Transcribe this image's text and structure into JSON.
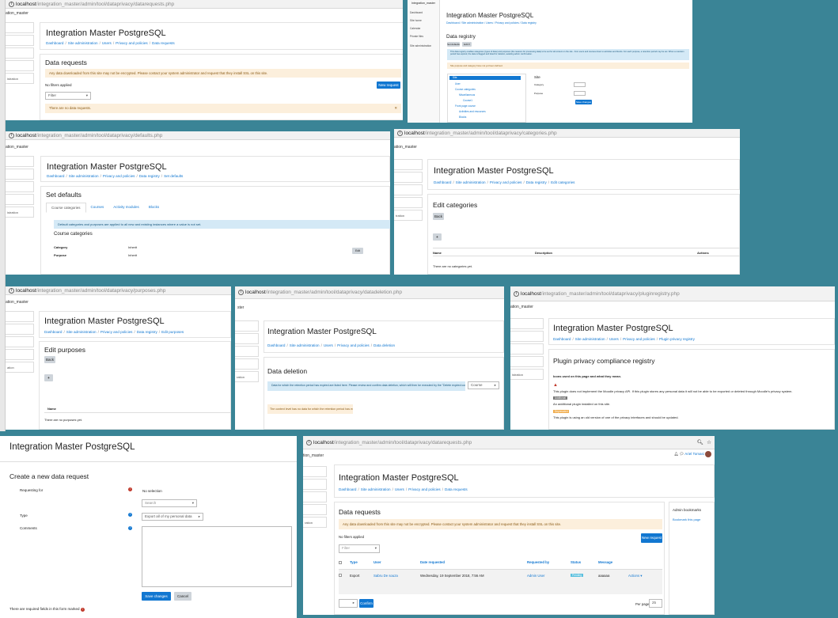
{
  "site_title": "Integration Master PostgreSQL",
  "site_short": "ation_master",
  "p1": {
    "host": "localhost",
    "path": "/integration_master/admin/tool/dataprivacy/datarequests.php",
    "breadcrumbs": [
      "Dashboard",
      "Site administration",
      "Users",
      "Privacy and policies",
      "Data requests"
    ],
    "heading": "Data requests",
    "alert": "Any data downloaded from this site may not be encrypted. Please contact your system administrator and request that they install SSL on this site.",
    "no_filters": "No filters applied",
    "filter_placeholder": "Filter",
    "new_request": "New request",
    "no_requests": "There are no data requests.",
    "nav_tail": "istration"
  },
  "p2": {
    "site": "Integration_master",
    "nav": [
      "Dashboard",
      "Site home",
      "Calendar",
      "Private files",
      "Site administration"
    ],
    "heading": "Data registry",
    "actions": [
      "Set defaults",
      "Edit"
    ],
    "info": "This data registry enables categories (types of data) and purposes (the reasons for processing data) to be set for all content on the site - from users and courses down to activities and blocks. For each purpose, a retention period may be set. When a retention period has expired, the data is flagged and listed for deletion, awaiting admin confirmation.",
    "warn": "Site purpose and category have not yet been defined.",
    "tree": [
      "Site",
      "User",
      "Course categories",
      "Miscellaneous",
      "Course1",
      "Front page course",
      "Activities and resources",
      "Blocks"
    ],
    "right_title": "Site",
    "fields": [
      "Category",
      "Purpose"
    ],
    "save": "Save changes"
  },
  "p3": {
    "host": "localhost",
    "path": "/integration_master/admin/tool/dataprivacy/defaults.php",
    "breadcrumbs": [
      "Dashboard",
      "Site administration",
      "Privacy and policies",
      "Data registry",
      "Set defaults"
    ],
    "heading": "Set defaults",
    "tabs": [
      "Course categories",
      "Courses",
      "Activity modules",
      "Blocks"
    ],
    "info": "Default categories and purposes are applied to all new and existing instances where a value is not set.",
    "section": "Course categories",
    "rows": [
      {
        "label": "Category",
        "value": "Inherit"
      },
      {
        "label": "Purpose",
        "value": "Inherit"
      }
    ],
    "edit": "Edit",
    "nav_tail": "istration"
  },
  "p4": {
    "host": "localhost",
    "path": "/integration_master/admin/tool/dataprivacy/categories.php",
    "breadcrumbs": [
      "Dashboard",
      "Site administration",
      "Privacy and policies",
      "Data registry",
      "Edit categories"
    ],
    "heading": "Edit categories",
    "back": "Back",
    "add": "+",
    "cols": [
      "Name",
      "Description",
      "Actions"
    ],
    "empty": "There are no categories yet.",
    "nav_tail": "tration"
  },
  "p5": {
    "host": "localhost",
    "path": "/integration_master/admin/tool/dataprivacy/purposes.php",
    "breadcrumbs": [
      "Dashboard",
      "Site administration",
      "Privacy and policies",
      "Data registry",
      "Edit purposes"
    ],
    "heading": "Edit purposes",
    "back": "Back",
    "add": "+",
    "col": "Name",
    "empty": "There are no purposes yet.",
    "nav_tail": "ation"
  },
  "p6": {
    "host": "localhost",
    "path": "/integration_master/admin/tool/dataprivacy/datadeletion.php",
    "site": "ster",
    "breadcrumbs": [
      "Dashboard",
      "Site administration",
      "Users",
      "Privacy and policies",
      "Data deletion"
    ],
    "heading": "Data deletion",
    "info": "Data for which the retention period has expired are listed here. Please review and confirm data deletion, which will then be executed by the \"Delete expired contexts\" scheduled task.",
    "select": "Course",
    "warn": "The context level has no data for which the retention period has expired.",
    "nav_tail": "ration"
  },
  "p7": {
    "host": "localhost",
    "path": "/integration_master/admin/tool/dataprivacy/pluginregistry.php",
    "site": "ation_master",
    "breadcrumbs": [
      "Dashboard",
      "Site administration",
      "Users",
      "Privacy and policies",
      "Plugin privacy registry"
    ],
    "heading": "Plugin privacy compliance registry",
    "icons_title": "Icons used on this page and what they mean.",
    "line1": "This plugin does not implement the Moodle privacy API. If this plugin stores any personal data it will not be able to be exported or deleted through Moodle's privacy system.",
    "badge1": "Additional",
    "line2": "An additional plugin installed on this site.",
    "badge2": "Deprecated",
    "line3": "This plugin is using an old version of one of the privacy interfaces and should be updated.",
    "nav_tail": "istration"
  },
  "p8": {
    "title": "Integration Master PostgreSQL",
    "heading": "Create a new data request",
    "requesting_for": "Requesting for",
    "no_selection": "No selection",
    "search": "Search",
    "type_label": "Type",
    "type_value": "Export all of my personal data",
    "comments": "Comments",
    "save": "Save changes",
    "cancel": "Cancel",
    "required_note": "There are required fields in this form marked"
  },
  "p9": {
    "host": "localhost",
    "path": "/integration_master/admin/tool/dataprivacy/datarequests.php",
    "site": "tion_master",
    "user": "Ariel Tomasi",
    "breadcrumbs": [
      "Dashboard",
      "Site administration",
      "Users",
      "Privacy and policies",
      "Data requests"
    ],
    "heading": "Data requests",
    "alert": "Any data downloaded from this site may not be encrypted. Please contact your system administrator and request that they install SSL on this site.",
    "no_filters": "No filters applied",
    "filter": "Filter",
    "new_request": "New request",
    "cols": [
      "Type",
      "User",
      "Date requested",
      "Requested by",
      "Status",
      "Message"
    ],
    "row": {
      "type": "Export",
      "user": "Sabru De souza",
      "date": "Wednesday, 19 September 2018, 7:56 AM",
      "by": "Admin User",
      "status": "Pending",
      "message": "aaaaaa",
      "actions": "Actions"
    },
    "confirm": "Confirm",
    "per_page_label": "Per page",
    "per_page": "25",
    "bookmarks_title": "Admin bookmarks",
    "bookmark_link": "Bookmark this page",
    "nav_tail": "ration"
  }
}
